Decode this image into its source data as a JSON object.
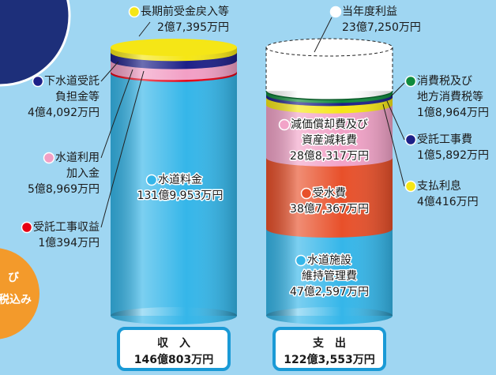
{
  "chart_data": [
    {
      "type": "bar",
      "categories": [
        "収　入"
      ],
      "total": 1460803,
      "total_label": "146億803万円",
      "series": [
        {
          "name": "水道料金",
          "color": "#35b6e9",
          "values": [
            1319953
          ],
          "value_labels": [
            "131億9,953万円"
          ]
        },
        {
          "name": "受託工事収益",
          "color": "#e60012",
          "values": [
            10394
          ],
          "value_labels": [
            "1億394万円"
          ]
        },
        {
          "name": "水道利用加入金",
          "color": "#f29fc5",
          "values": [
            58969
          ],
          "value_labels": [
            "5億8,969万円"
          ]
        },
        {
          "name": "下水道受託負担金等",
          "color": "#1d2088",
          "values": [
            44092
          ],
          "value_labels": [
            "4億4,092万円"
          ]
        },
        {
          "name": "長期前受金戻入等",
          "color": "#f5e616",
          "values": [
            27395
          ],
          "value_labels": [
            "2億7,395万円"
          ]
        }
      ]
    },
    {
      "type": "bar",
      "categories": [
        "支　出"
      ],
      "total": 1223553,
      "total_label": "122億3,553万円",
      "series": [
        {
          "name": "水道施設維持管理費",
          "color": "#35b6e9",
          "values": [
            472597
          ],
          "value_labels": [
            "47億2,597万円"
          ]
        },
        {
          "name": "受水費",
          "color": "#e8502a",
          "values": [
            387367
          ],
          "value_labels": [
            "38億7,367万円"
          ]
        },
        {
          "name": "減価償却費及び資産減耗費",
          "color": "#f2a3c8",
          "values": [
            288317
          ],
          "value_labels": [
            "28億8,317万円"
          ]
        },
        {
          "name": "支払利息",
          "color": "#f5e616",
          "values": [
            40416
          ],
          "value_labels": [
            "4億416万円"
          ]
        },
        {
          "name": "受託工事費",
          "color": "#1d2088",
          "values": [
            15892
          ],
          "value_labels": [
            "1億5,892万円"
          ]
        },
        {
          "name": "消費税及び地方消費税等",
          "color": "#0f8a3c",
          "values": [
            18964
          ],
          "value_labels": [
            "1億8,964万円"
          ]
        },
        {
          "name": "当年度利益",
          "color": "#ffffff",
          "values": [
            237250
          ],
          "value_labels": [
            "23億7,250万円"
          ]
        }
      ]
    }
  ],
  "badge": {
    "lines": [
      "び",
      "税込み"
    ]
  }
}
